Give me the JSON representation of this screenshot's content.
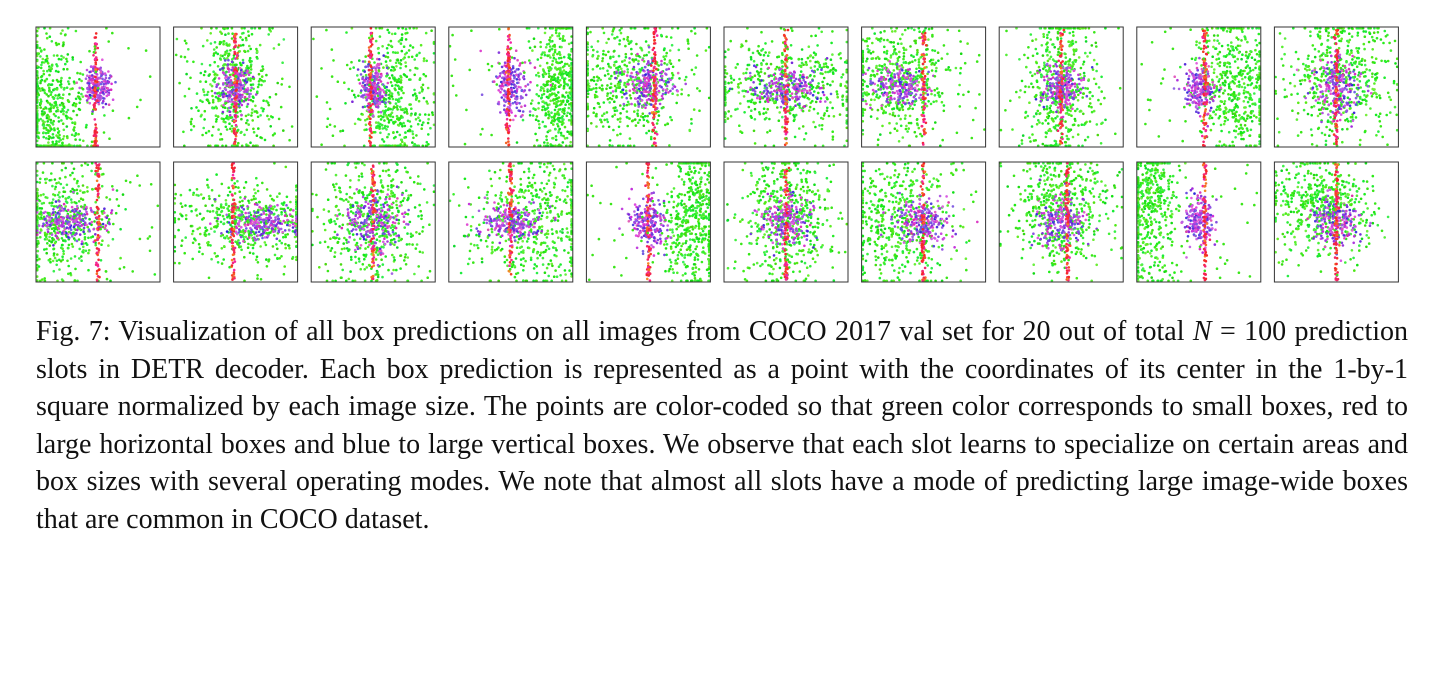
{
  "caption": {
    "label": "Fig. 7:",
    "segments": [
      "Visualization of all box predictions on all images from COCO 2017 val set for 20 out of total ",
      "N",
      " = 100 prediction slots in DETR decoder. Each box prediction is represented as a point with the coordinates of its center in the 1-by-1 square normalized by each image size. The points are color-coded so that green color corresponds to small boxes, red to large horizontal boxes and blue to large vertical boxes. We observe that each slot learns to specialize on certain areas and box sizes with several operating modes. We note that almost all slots have a mode of predicting large image-wide boxes that are common in COCO dataset."
    ]
  }
}
